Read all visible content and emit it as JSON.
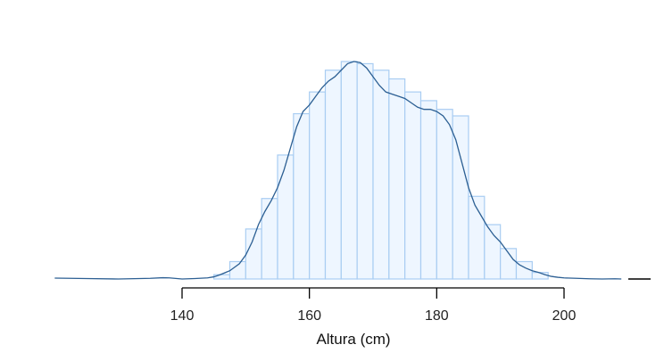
{
  "chart_data": {
    "type": "bar",
    "title": "",
    "xlabel": "Altura (cm)",
    "ylabel": "",
    "xlim": [
      120,
      210
    ],
    "x_ticks": [
      140,
      160,
      180,
      200
    ],
    "x_tick_labels": [
      "140",
      "160",
      "180",
      "200"
    ],
    "grid": false,
    "legend": "none",
    "histogram": {
      "bin_width": 2.5,
      "bin_starts": [
        145,
        147.5,
        150,
        152.5,
        155,
        157.5,
        160,
        162.5,
        165,
        167.5,
        170,
        172.5,
        175,
        177.5,
        180,
        182.5,
        185,
        187.5,
        190,
        192.5,
        195
      ],
      "heights": [
        2,
        8,
        23,
        37,
        57,
        76,
        86,
        96,
        100,
        99,
        96,
        92,
        86,
        82,
        78,
        75,
        38,
        25,
        14,
        8,
        3
      ]
    },
    "density_curve": {
      "x": [
        120,
        125,
        130,
        135,
        137,
        138,
        140,
        142,
        144,
        145,
        146,
        147.5,
        149,
        150,
        151,
        152,
        153,
        154,
        155,
        156,
        157,
        158,
        159,
        160,
        161,
        162,
        163,
        164,
        165,
        166,
        167,
        168,
        169,
        170,
        171,
        172,
        173,
        174,
        175,
        176,
        177,
        178,
        179,
        180,
        181,
        182,
        183,
        184,
        185,
        186,
        187,
        188,
        189,
        190,
        191,
        192,
        193,
        194,
        195,
        196,
        197,
        198,
        199,
        200,
        202,
        204,
        206,
        208,
        209
      ],
      "y": [
        0.4,
        0.2,
        0.0,
        0.3,
        0.6,
        0.5,
        0.0,
        0.2,
        0.5,
        1.0,
        2.0,
        3.8,
        7.0,
        11.0,
        17.0,
        25.0,
        31.0,
        36.0,
        42.0,
        50.0,
        60.0,
        70.0,
        77.0,
        80.0,
        84.0,
        88.0,
        91.0,
        93.0,
        96.0,
        99.0,
        100.0,
        99.5,
        97.0,
        93.0,
        89.0,
        86.0,
        85.0,
        84.0,
        83.0,
        81.0,
        79.0,
        78.0,
        78.0,
        77.0,
        75.0,
        71.0,
        64.0,
        53.0,
        42.0,
        34.0,
        29.0,
        24.0,
        20.0,
        17.0,
        13.0,
        9.0,
        6.5,
        5.0,
        3.8,
        3.0,
        2.0,
        1.2,
        0.8,
        0.5,
        0.3,
        0.1,
        0.0,
        0.1,
        0.0
      ]
    },
    "colors": {
      "bar_fill": "#eef6ff",
      "bar_stroke": "#a9cdf2",
      "curve": "#2c5f93",
      "axis": "#000000"
    }
  }
}
